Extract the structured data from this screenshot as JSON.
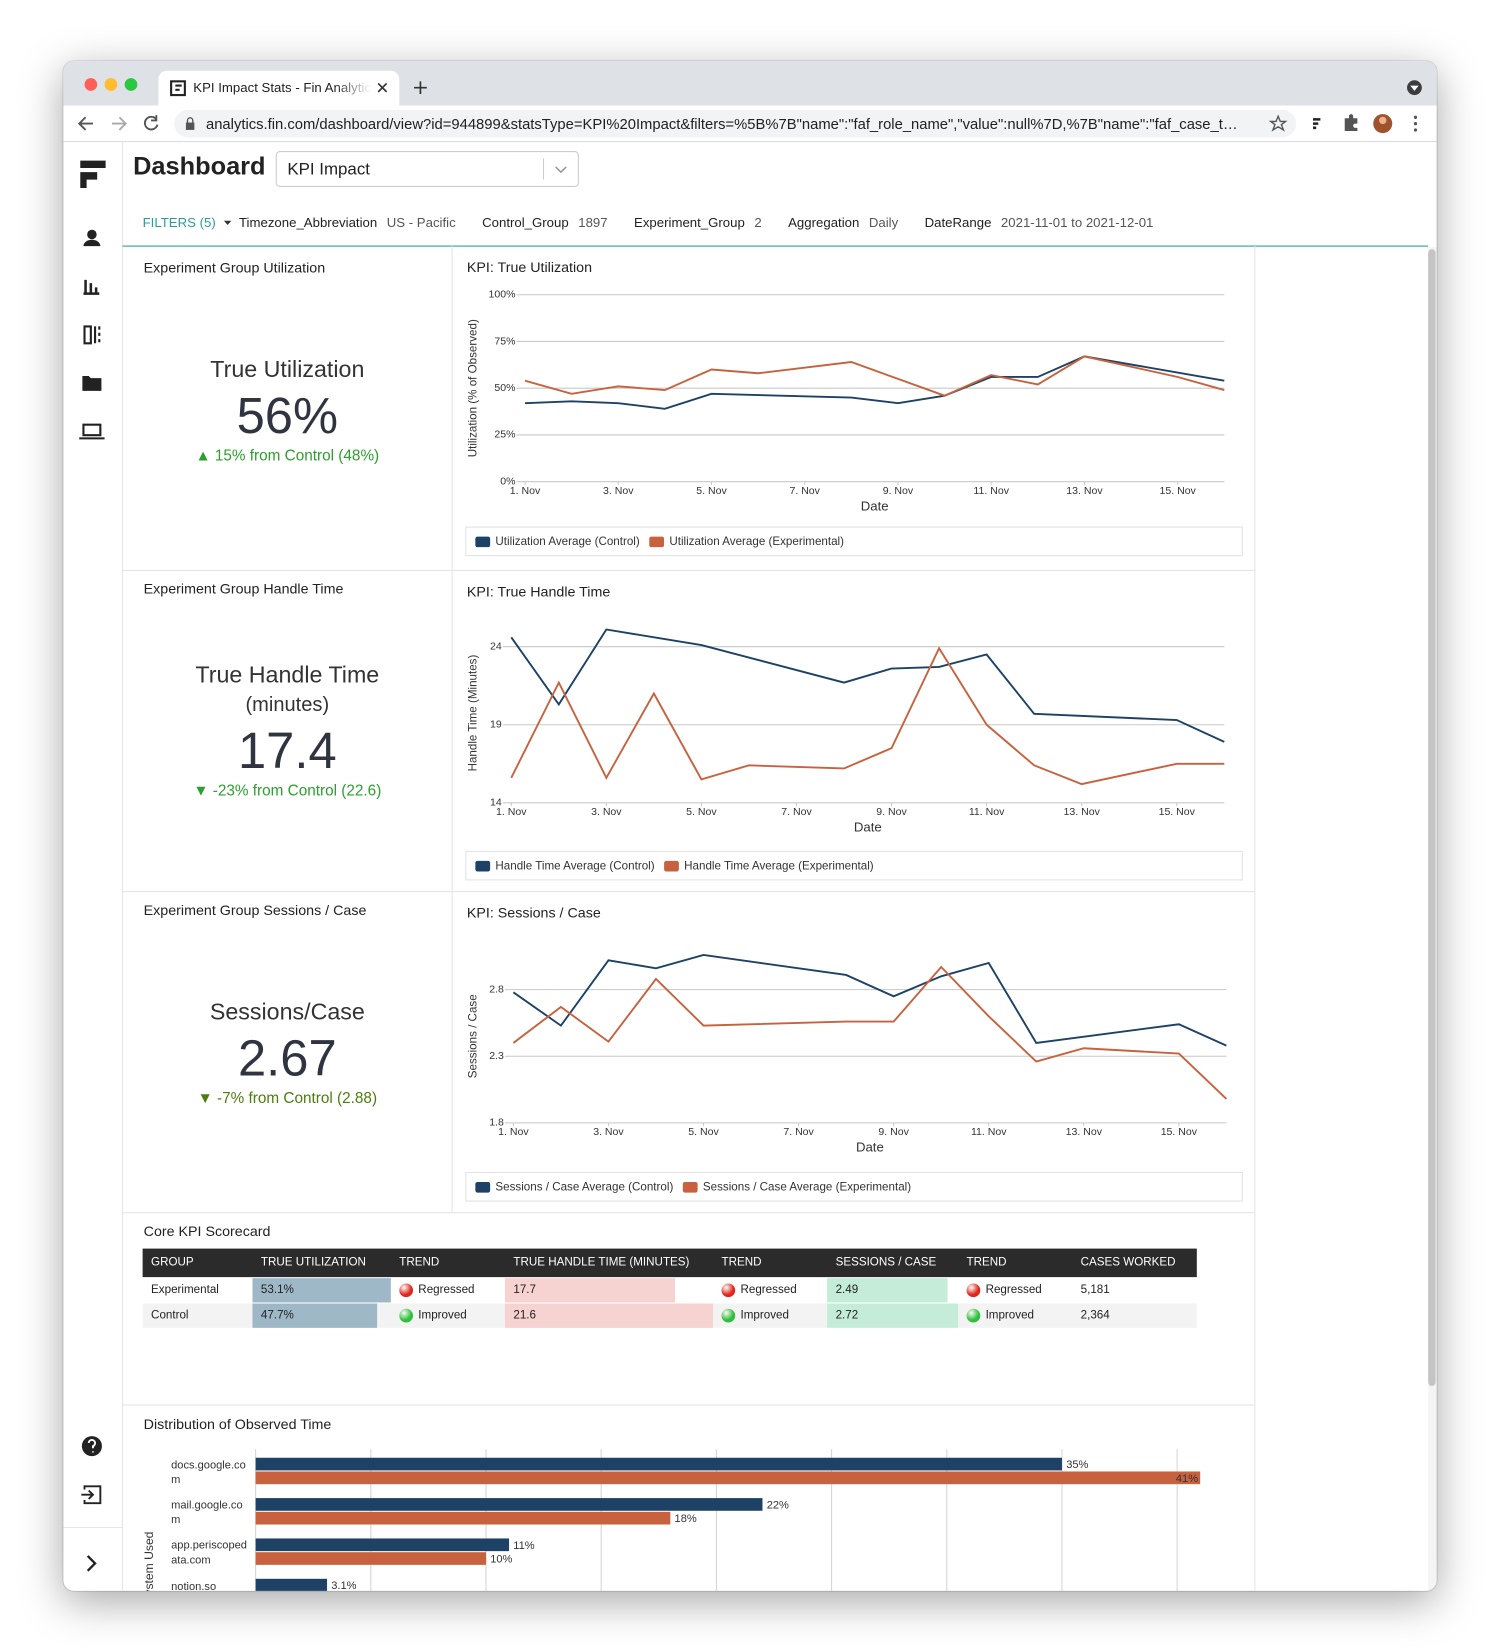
{
  "browser": {
    "tab_title": "KPI Impact Stats - Fin Analytic",
    "url": "analytics.fin.com/dashboard/view?id=944899&statsType=KPI%20Impact&filters=%5B%7B\"name\":\"faf_role_name\",\"value\":null%7D,%7B\"name\":\"faf_case_t…"
  },
  "header": {
    "title": "Dashboard",
    "dashboard_select": "KPI Impact"
  },
  "filters": {
    "label": "FILTERS (5)",
    "items": [
      {
        "name": "Timezone_Abbreviation",
        "value": "US - Pacific"
      },
      {
        "name": "Control_Group",
        "value": "1897"
      },
      {
        "name": "Experiment_Group",
        "value": "2"
      },
      {
        "name": "Aggregation",
        "value": "Daily"
      },
      {
        "name": "DateRange",
        "value": "2021-11-01 to 2021-12-01"
      }
    ]
  },
  "kpi_cards": [
    {
      "title": "Experiment Group Utilization",
      "metric": "True Utilization",
      "value": "56%",
      "delta": "▲ 15% from Control (48%)",
      "delta_color": "#2e9e2e"
    },
    {
      "title": "Experiment Group Handle Time",
      "metric": "True Handle Time",
      "unit": "(minutes)",
      "value": "17.4",
      "delta": "▼ -23% from Control (22.6)",
      "delta_color": "#2e9e2e"
    },
    {
      "title": "Experiment Group Sessions / Case",
      "metric": "Sessions/Case",
      "value": "2.67",
      "delta": "▼ -7% from Control (2.88)",
      "delta_color": "#4d7c0f"
    }
  ],
  "chart_data": [
    {
      "type": "line",
      "title": "KPI: True Utilization",
      "x_label": "Date",
      "y_label": "Utilization (% of Observed)",
      "xlim": [
        1,
        16
      ],
      "xticks": [
        {
          "value": 1,
          "label": "1. Nov"
        },
        {
          "value": 3,
          "label": "3. Nov"
        },
        {
          "value": 5,
          "label": "5. Nov"
        },
        {
          "value": 7,
          "label": "7. Nov"
        },
        {
          "value": 9,
          "label": "9. Nov"
        },
        {
          "value": 11,
          "label": "11. Nov"
        },
        {
          "value": 13,
          "label": "13. Nov"
        },
        {
          "value": 15,
          "label": "15. Nov"
        }
      ],
      "ylim": [
        0,
        100
      ],
      "yticks": [
        {
          "value": 0,
          "label": "0%"
        },
        {
          "value": 25,
          "label": "25%"
        },
        {
          "value": 50,
          "label": "50%"
        },
        {
          "value": 75,
          "label": "75%"
        },
        {
          "value": 100,
          "label": "100%"
        }
      ],
      "grid": true,
      "series": [
        {
          "name": "Utilization Average (Control)",
          "color": "#1d4266",
          "x": [
            1,
            2,
            3,
            4,
            5,
            8,
            9,
            10,
            11,
            12,
            13,
            16
          ],
          "values": [
            42,
            43,
            42,
            39,
            47,
            45,
            42,
            46,
            56,
            56,
            67,
            54
          ]
        },
        {
          "name": "Utilization Average (Experimental)",
          "color": "#c8623e",
          "x": [
            1,
            2,
            3,
            4,
            5,
            6,
            8,
            10,
            11,
            12,
            13,
            15,
            16
          ],
          "values": [
            54,
            47,
            51,
            49,
            60,
            58,
            64,
            46,
            57,
            52,
            67,
            56,
            49
          ]
        }
      ]
    },
    {
      "type": "line",
      "title": "KPI: True Handle Time",
      "x_label": "Date",
      "y_label": "Handle Time (Minutes)",
      "xlim": [
        1,
        16
      ],
      "xticks": [
        {
          "value": 1,
          "label": "1. Nov"
        },
        {
          "value": 3,
          "label": "3. Nov"
        },
        {
          "value": 5,
          "label": "5. Nov"
        },
        {
          "value": 7,
          "label": "7. Nov"
        },
        {
          "value": 9,
          "label": "9. Nov"
        },
        {
          "value": 11,
          "label": "11. Nov"
        },
        {
          "value": 13,
          "label": "13. Nov"
        },
        {
          "value": 15,
          "label": "15. Nov"
        }
      ],
      "ylim": [
        14,
        25.5
      ],
      "yticks": [
        14,
        19,
        24
      ],
      "grid": true,
      "series": [
        {
          "name": "Handle Time Average (Control)",
          "color": "#1d4266",
          "x": [
            1,
            2,
            3,
            5,
            8,
            9,
            10,
            11,
            12,
            15,
            16
          ],
          "values": [
            24.6,
            20.3,
            25.1,
            24.1,
            21.7,
            22.6,
            22.7,
            23.5,
            19.7,
            19.3,
            17.9
          ]
        },
        {
          "name": "Handle Time Average (Experimental)",
          "color": "#c8623e",
          "x": [
            1,
            2,
            3,
            4,
            5,
            6,
            8,
            9,
            10,
            11,
            12,
            13,
            15,
            16
          ],
          "values": [
            15.6,
            21.7,
            15.6,
            21.0,
            15.5,
            16.4,
            16.2,
            17.5,
            23.9,
            19.0,
            16.4,
            15.2,
            16.5,
            16.5
          ]
        }
      ]
    },
    {
      "type": "line",
      "title": "KPI: Sessions / Case",
      "x_label": "Date",
      "y_label": "Sessions / Case",
      "xlim": [
        1,
        16
      ],
      "xticks": [
        {
          "value": 1,
          "label": "1. Nov"
        },
        {
          "value": 3,
          "label": "3. Nov"
        },
        {
          "value": 5,
          "label": "5. Nov"
        },
        {
          "value": 7,
          "label": "7. Nov"
        },
        {
          "value": 9,
          "label": "9. Nov"
        },
        {
          "value": 11,
          "label": "11. Nov"
        },
        {
          "value": 13,
          "label": "13. Nov"
        },
        {
          "value": 15,
          "label": "15. Nov"
        }
      ],
      "ylim": [
        1.8,
        3.1
      ],
      "yticks": [
        1.8,
        2.3,
        2.8
      ],
      "grid": true,
      "series": [
        {
          "name": "Sessions / Case Average (Control)",
          "color": "#1d4266",
          "x": [
            1,
            2,
            3,
            4,
            5,
            8,
            9,
            10,
            11,
            12,
            15,
            16
          ],
          "values": [
            2.78,
            2.53,
            3.02,
            2.96,
            3.06,
            2.91,
            2.75,
            2.9,
            3.0,
            2.4,
            2.54,
            2.38
          ]
        },
        {
          "name": "Sessions / Case Average (Experimental)",
          "color": "#c8623e",
          "x": [
            1,
            2,
            3,
            4,
            5,
            8,
            9,
            10,
            11,
            12,
            13,
            15,
            16
          ],
          "values": [
            2.4,
            2.67,
            2.41,
            2.88,
            2.53,
            2.56,
            2.56,
            2.97,
            2.6,
            2.26,
            2.36,
            2.32,
            1.98
          ]
        }
      ]
    },
    {
      "type": "bar",
      "orientation": "horizontal",
      "title": "Distribution of Observed Time",
      "y_label": "System Used",
      "categories": [
        "docs.google.com",
        "mail.google.com",
        "app.periscopedata.com",
        "notion.so"
      ],
      "xlim": [
        0,
        42
      ],
      "xticks": [
        0,
        5,
        10,
        15,
        20,
        25,
        30,
        35,
        40
      ],
      "grid": true,
      "series": [
        {
          "color": "#1d4266",
          "values": [
            35,
            22,
            11,
            3.1
          ],
          "value_labels": [
            "35%",
            "22%",
            "11%",
            "3.1%"
          ]
        },
        {
          "color": "#c8623e",
          "values": [
            41,
            18,
            10,
            null
          ],
          "value_labels": [
            "41%",
            "18%",
            "10%",
            null
          ]
        }
      ]
    }
  ],
  "scorecard": {
    "title": "Core KPI Scorecard",
    "columns": [
      "GROUP",
      "TRUE UTILIZATION",
      "TREND",
      "TRUE HANDLE TIME (MINUTES)",
      "TREND",
      "SESSIONS / CASE",
      "TREND",
      "CASES WORKED"
    ],
    "rows": [
      [
        "Experimental",
        "53.1%",
        "Regressed",
        "17.7",
        "Regressed",
        "2.49",
        "Regressed",
        "5,181"
      ],
      [
        "Control",
        "47.7%",
        "Improved",
        "21.6",
        "Improved",
        "2.72",
        "Improved",
        "2,364"
      ]
    ],
    "databar_colors": {
      "1": "#9fb8c8",
      "3": "#f6d2d0",
      "5": "#c5ecd9"
    },
    "status_colors": {
      "Regressed": "#e0261b",
      "Improved": "#2fbf3a"
    }
  }
}
